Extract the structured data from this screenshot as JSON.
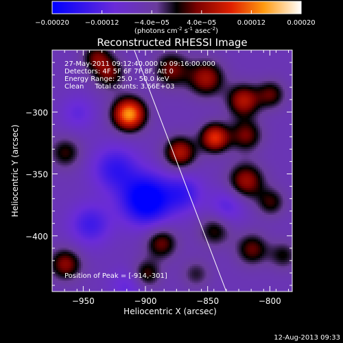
{
  "chart_data": {
    "type": "heatmap",
    "title": "Reconstructed RHESSI Image",
    "xlabel": "Heliocentric X (arcsec)",
    "ylabel": "Heliocentric Y (arcsec)",
    "xlim": [
      -975,
      -782
    ],
    "ylim": [
      -445,
      -250
    ],
    "xticks": [
      -950,
      -900,
      -850,
      -800
    ],
    "yticks": [
      -300,
      -350,
      -400
    ],
    "colorbar": {
      "range": [
        -0.0002,
        0.0002
      ],
      "tick_values": [
        -0.0002,
        -0.00012,
        -4e-05,
        4e-05,
        0.00012,
        0.0002
      ],
      "tick_labels": [
        "-0.00020",
        "-0.00012",
        "-4.0e-05",
        "4.0e-05",
        "0.00012",
        "0.00020"
      ],
      "unit_parts": {
        "pre": "(photons cm",
        "e1": "-2",
        "mid1": " s",
        "e2": "-1",
        "mid2": " asec",
        "e3": "-2",
        "post": ")"
      }
    },
    "annotations": {
      "line1": "27-May-2011 09:12:40.000 to 09:16:00.000",
      "line2": "Detectors: 4F 5F 6F 7F 8F, Att 0",
      "line3": "Energy Range: 25.0 - 50.0 keV",
      "line4": "Clean     Total counts: 3.66E+03"
    },
    "peak_label": "Position of Peak = [-914,-301]",
    "peak": {
      "x": -914,
      "y": -301
    },
    "limb_line": [
      [
        -909,
        -250
      ],
      [
        -835,
        -445
      ]
    ],
    "sources": [
      {
        "x": -914,
        "y": -301,
        "v": 0.0002,
        "s": 9
      },
      {
        "x": -880,
        "y": -265,
        "v": 9e-05,
        "s": 10
      },
      {
        "x": -930,
        "y": -268,
        "v": 8.5e-05,
        "s": 9
      },
      {
        "x": -852,
        "y": -272,
        "v": 0.00011,
        "s": 10
      },
      {
        "x": -822,
        "y": -290,
        "v": 0.00012,
        "s": 9
      },
      {
        "x": -845,
        "y": -320,
        "v": 0.00015,
        "s": 8
      },
      {
        "x": -873,
        "y": -332,
        "v": 0.00012,
        "s": 9
      },
      {
        "x": -820,
        "y": -318,
        "v": 9e-05,
        "s": 9
      },
      {
        "x": -800,
        "y": -285,
        "v": 8e-05,
        "s": 8
      },
      {
        "x": -820,
        "y": -355,
        "v": 0.00011,
        "s": 10
      },
      {
        "x": -800,
        "y": -372,
        "v": 7e-05,
        "s": 8
      },
      {
        "x": -940,
        "y": -255,
        "v": 8e-05,
        "s": 8
      },
      {
        "x": -965,
        "y": -332,
        "v": 7e-05,
        "s": 9
      },
      {
        "x": -965,
        "y": -422,
        "v": 0.0001,
        "s": 9
      },
      {
        "x": -888,
        "y": -405,
        "v": 9e-05,
        "s": 9
      },
      {
        "x": -900,
        "y": -430,
        "v": 8e-05,
        "s": 8
      },
      {
        "x": -845,
        "y": -395,
        "v": 7e-05,
        "s": 9
      },
      {
        "x": -815,
        "y": -410,
        "v": 8.5e-05,
        "s": 9
      },
      {
        "x": -790,
        "y": -415,
        "v": 6e-05,
        "s": 8
      },
      {
        "x": -860,
        "y": -430,
        "v": 5e-05,
        "s": 8
      },
      {
        "x": -900,
        "y": -370,
        "v": -0.00017,
        "s": 14
      },
      {
        "x": -925,
        "y": -345,
        "v": -9e-05,
        "s": 13
      },
      {
        "x": -945,
        "y": -390,
        "v": -8e-05,
        "s": 12
      },
      {
        "x": -870,
        "y": -365,
        "v": -8e-05,
        "s": 11
      },
      {
        "x": -835,
        "y": -375,
        "v": -6e-05,
        "s": 10
      },
      {
        "x": -955,
        "y": -300,
        "v": -5e-05,
        "s": 10
      },
      {
        "x": -915,
        "y": -440,
        "v": -5e-05,
        "s": 10
      }
    ]
  },
  "footer": {
    "timestamp": "12-Aug-2013 09:33"
  }
}
